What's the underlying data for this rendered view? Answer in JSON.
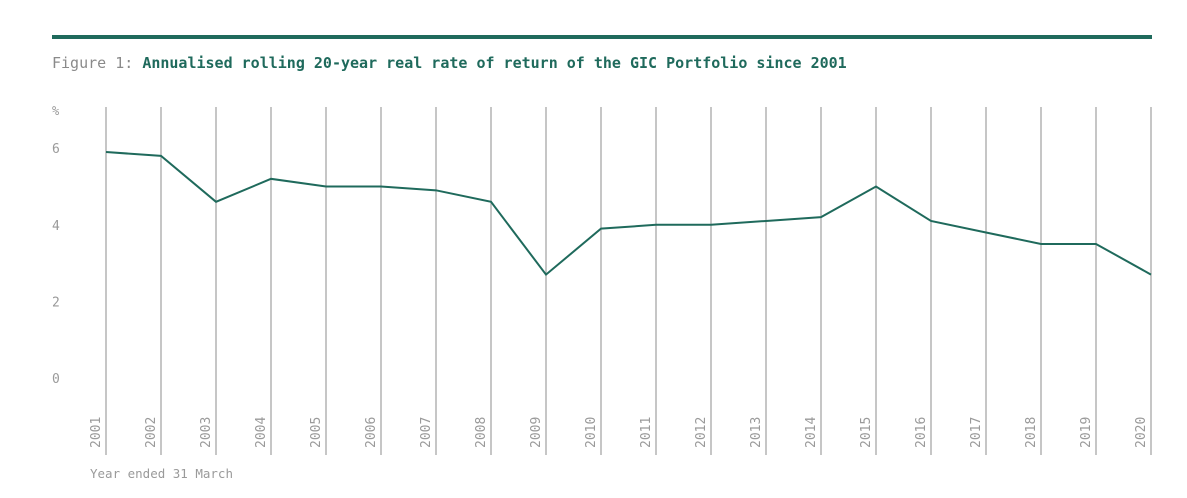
{
  "figure_label": "Figure 1:",
  "chart_data": {
    "type": "line",
    "title": "Annualised rolling 20-year real rate of return of the GIC Portfolio since 2001",
    "xlabel": "Year ended 31 March",
    "ylabel": "%",
    "ylim": [
      0,
      6
    ],
    "yticks": [
      "0",
      "2",
      "4",
      "6"
    ],
    "ytick_values": [
      0,
      2,
      4,
      6
    ],
    "grid": "vertical",
    "categories": [
      "2001",
      "2002",
      "2003",
      "2004",
      "2005",
      "2006",
      "2007",
      "2008",
      "2009",
      "2010",
      "2011",
      "2012",
      "2013",
      "2014",
      "2015",
      "2016",
      "2017",
      "2018",
      "2019",
      "2020"
    ],
    "series": [
      {
        "name": "Annualised rolling 20-year real rate of return",
        "values": [
          5.9,
          5.8,
          4.6,
          5.2,
          5.0,
          5.0,
          4.9,
          4.6,
          2.7,
          3.9,
          4.0,
          4.0,
          4.1,
          4.2,
          5.0,
          4.1,
          3.8,
          3.5,
          3.5,
          2.7
        ]
      }
    ]
  },
  "colors": {
    "line": "#1f6a5c",
    "grid": "#a8a8a8",
    "text": "#9a9a9a"
  }
}
